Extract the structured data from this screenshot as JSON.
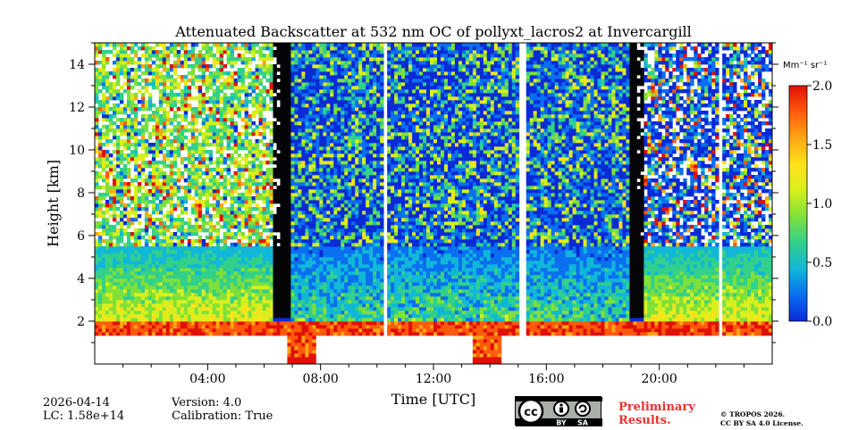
{
  "chart_data": {
    "type": "heatmap",
    "title": "Attenuated Backscatter at 532 nm OC of pollyxt_lacros2 at Invercargill",
    "xlabel": "Time [UTC]",
    "ylabel": "Height [km]",
    "xlim": [
      0,
      24
    ],
    "ylim": [
      0,
      15
    ],
    "x_ticks": [
      {
        "value": 4,
        "label": "04:00"
      },
      {
        "value": 8,
        "label": "08:00"
      },
      {
        "value": 12,
        "label": "12:00"
      },
      {
        "value": 16,
        "label": "16:00"
      },
      {
        "value": 20,
        "label": "20:00"
      }
    ],
    "y_ticks": [
      {
        "value": 2,
        "label": "2"
      },
      {
        "value": 4,
        "label": "4"
      },
      {
        "value": 6,
        "label": "6"
      },
      {
        "value": 8,
        "label": "8"
      },
      {
        "value": 10,
        "label": "10"
      },
      {
        "value": 12,
        "label": "12"
      },
      {
        "value": 14,
        "label": "14"
      }
    ],
    "colorbar": {
      "label": "Mm⁻¹ sr⁻¹",
      "range": [
        0.0,
        2.0
      ],
      "ticks": [
        "0.0",
        "0.5",
        "1.0",
        "1.5",
        "2.0"
      ],
      "colors": [
        "#0a2ad6",
        "#0a6ff0",
        "#11b7d8",
        "#32d08a",
        "#7fe03a",
        "#d8ef1e",
        "#ffe21a",
        "#ffa614",
        "#ff5a0c",
        "#e01004"
      ]
    },
    "features": {
      "aerosol_layer_top_km": 2.0,
      "aerosol_layer_bottom_km": 1.3,
      "data_gaps_hours": [
        [
          10.15,
          10.3
        ],
        [
          15.0,
          15.25
        ],
        [
          22.1,
          22.2
        ]
      ]
    }
  },
  "footer": {
    "date": "2026-04-14",
    "lc": "LC: 1.58e+14",
    "version": "Version: 4.0",
    "calibration": "Calibration: True",
    "preliminary": [
      "Preliminary",
      "Results."
    ],
    "copyright": [
      "© TROPOS 2026.",
      "CC BY SA 4.0 License."
    ],
    "license_badge": {
      "cc": "cc",
      "by": "BY",
      "sa": "SA"
    }
  }
}
